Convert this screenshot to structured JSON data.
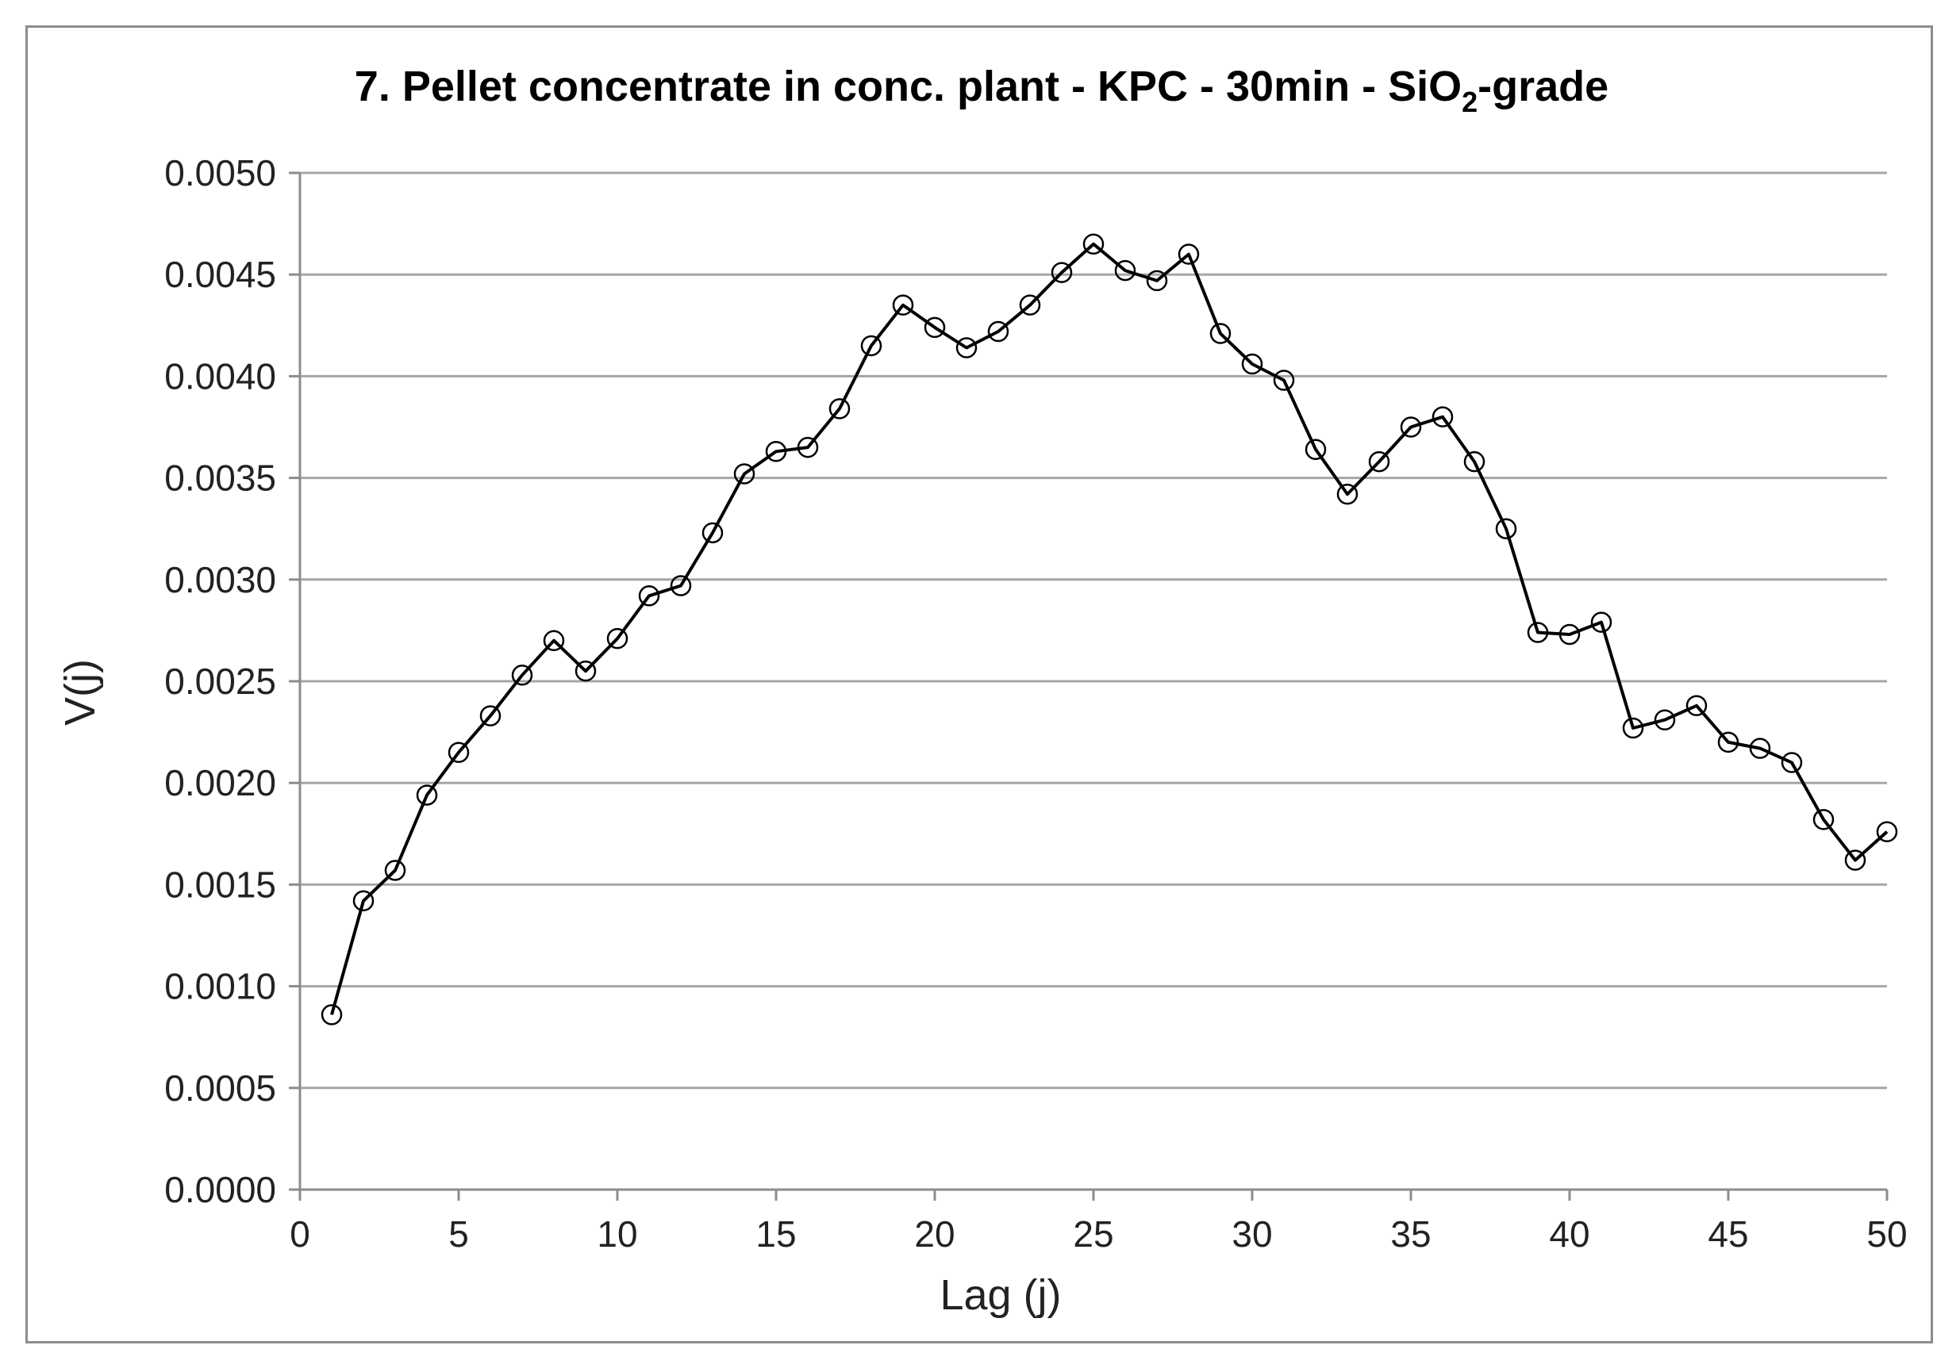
{
  "chart_data": {
    "type": "line",
    "title": "7. Pellet concentrate in conc. plant - KPC - 30min - SiO",
    "title_subscript": "2",
    "title_suffix": "-grade",
    "xlabel": "Lag (j)",
    "ylabel": "V(j)",
    "xlim": [
      0,
      50
    ],
    "ylim": [
      0,
      0.005
    ],
    "x_ticks": [
      "0",
      "5",
      "10",
      "15",
      "20",
      "25",
      "30",
      "35",
      "40",
      "45",
      "50"
    ],
    "y_ticks": [
      "0.0000",
      "0.0005",
      "0.0010",
      "0.0015",
      "0.0020",
      "0.0025",
      "0.0030",
      "0.0035",
      "0.0040",
      "0.0045",
      "0.0050"
    ],
    "grid": "horizontal",
    "legend": "none",
    "colors": {
      "line": "#000000",
      "grid": "#a6a6a6",
      "axis": "#8c8c8c"
    },
    "series": [
      {
        "marker": "open-circle",
        "x": [
          1,
          2,
          3,
          4,
          5,
          6,
          7,
          8,
          9,
          10,
          11,
          12,
          13,
          14,
          15,
          16,
          17,
          18,
          19,
          20,
          21,
          22,
          23,
          24,
          25,
          26,
          27,
          28,
          29,
          30,
          31,
          32,
          33,
          34,
          35,
          36,
          37,
          38,
          39,
          40,
          41,
          42,
          43,
          44,
          45,
          46,
          47,
          48,
          49,
          50
        ],
        "y": [
          0.00086,
          0.00142,
          0.00157,
          0.00194,
          0.00215,
          0.00233,
          0.00253,
          0.0027,
          0.00255,
          0.00271,
          0.00292,
          0.00297,
          0.00323,
          0.00352,
          0.00363,
          0.00365,
          0.00384,
          0.00415,
          0.00435,
          0.00424,
          0.00414,
          0.00422,
          0.00435,
          0.00451,
          0.00465,
          0.00452,
          0.00447,
          0.0046,
          0.00421,
          0.00406,
          0.00398,
          0.00364,
          0.00342,
          0.00358,
          0.00375,
          0.0038,
          0.00358,
          0.00325,
          0.00274,
          0.00273,
          0.00279,
          0.00227,
          0.00231,
          0.00238,
          0.0022,
          0.00217,
          0.0021,
          0.00182,
          0.00162,
          0.00176
        ]
      }
    ]
  }
}
